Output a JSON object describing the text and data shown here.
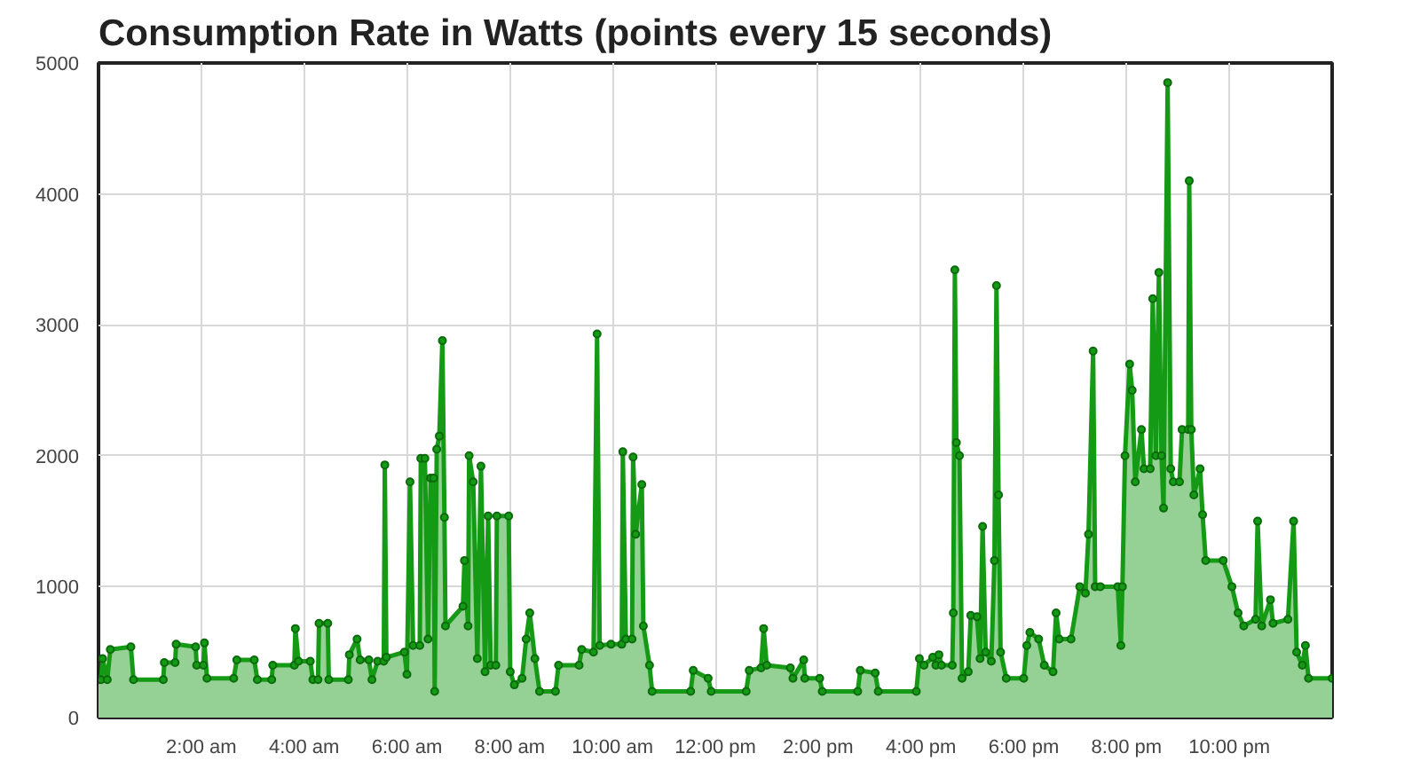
{
  "chart_data": {
    "type": "area",
    "title": "Consumption Rate in Watts (points every 15 seconds)",
    "xlim": [
      0,
      24
    ],
    "ylim": [
      0,
      5000
    ],
    "xticks": [
      {
        "value": 2,
        "label": "2:00 am"
      },
      {
        "value": 4,
        "label": "4:00 am"
      },
      {
        "value": 6,
        "label": "6:00 am"
      },
      {
        "value": 8,
        "label": "8:00 am"
      },
      {
        "value": 10,
        "label": "10:00 am"
      },
      {
        "value": 12,
        "label": "12:00 pm"
      },
      {
        "value": 14,
        "label": "2:00 pm"
      },
      {
        "value": 16,
        "label": "4:00 pm"
      },
      {
        "value": 18,
        "label": "6:00 pm"
      },
      {
        "value": 20,
        "label": "8:00 pm"
      },
      {
        "value": 22,
        "label": "10:00 pm"
      }
    ],
    "yticks": [
      0,
      1000,
      2000,
      3000,
      4000,
      5000
    ],
    "grid": true,
    "marker": "circle",
    "line_style": "solid",
    "series": [
      {
        "color": "#159a15",
        "x": [
          0,
          0.05,
          0.08,
          0.17,
          0.23,
          0.63,
          0.68,
          1.26,
          1.28,
          1.49,
          1.51,
          1.89,
          1.91,
          2.04,
          2.06,
          2.11,
          2.63,
          2.69,
          3.03,
          3.09,
          3.37,
          3.39,
          3.81,
          3.83,
          3.89,
          4.12,
          4.17,
          4.27,
          4.29,
          4.46,
          4.48,
          4.86,
          4.88,
          5.03,
          5.09,
          5.26,
          5.32,
          5.43,
          5.55,
          5.57,
          5.6,
          5.95,
          6.0,
          6.06,
          6.12,
          6.25,
          6.27,
          6.35,
          6.41,
          6.46,
          6.52,
          6.54,
          6.58,
          6.63,
          6.69,
          6.73,
          6.75,
          7.09,
          7.12,
          7.19,
          7.21,
          7.29,
          7.37,
          7.44,
          7.52,
          7.58,
          7.63,
          7.73,
          7.75,
          7.98,
          8.01,
          8.09,
          8.24,
          8.32,
          8.39,
          8.49,
          8.58,
          8.89,
          8.95,
          9.35,
          9.4,
          9.63,
          9.7,
          9.75,
          9.97,
          10.18,
          10.2,
          10.26,
          10.38,
          10.4,
          10.45,
          10.57,
          10.6,
          10.72,
          10.77,
          11.52,
          11.57,
          11.86,
          11.92,
          12.6,
          12.66,
          12.89,
          12.94,
          13.0,
          13.46,
          13.51,
          13.72,
          13.74,
          14.03,
          14.08,
          14.77,
          14.82,
          15.11,
          15.17,
          15.91,
          15.97,
          16.06,
          16.23,
          16.29,
          16.35,
          16.4,
          16.61,
          16.63,
          16.66,
          16.69,
          16.75,
          16.8,
          16.92,
          16.97,
          17.09,
          17.15,
          17.2,
          17.26,
          17.37,
          17.43,
          17.47,
          17.51,
          17.55,
          17.66,
          18.0,
          18.06,
          18.12,
          18.29,
          18.4,
          18.57,
          18.63,
          18.69,
          18.92,
          19.09,
          19.2,
          19.26,
          19.35,
          19.39,
          19.49,
          19.83,
          19.89,
          19.92,
          19.97,
          20.06,
          20.11,
          20.17,
          20.29,
          20.34,
          20.46,
          20.51,
          20.57,
          20.63,
          20.68,
          20.72,
          20.8,
          20.86,
          20.91,
          21.03,
          21.08,
          21.2,
          21.22,
          21.26,
          21.31,
          21.43,
          21.48,
          21.54,
          21.88,
          22.05,
          22.17,
          22.28,
          22.51,
          22.55,
          22.63,
          22.8,
          22.85,
          23.14,
          23.25,
          23.31,
          23.42,
          23.48,
          23.54,
          24.0
        ],
        "values": [
          290,
          290,
          450,
          290,
          520,
          540,
          290,
          290,
          420,
          420,
          560,
          540,
          400,
          400,
          570,
          300,
          300,
          440,
          440,
          290,
          290,
          400,
          400,
          680,
          430,
          430,
          290,
          290,
          720,
          720,
          290,
          290,
          480,
          600,
          440,
          440,
          290,
          430,
          430,
          1930,
          460,
          500,
          330,
          1800,
          550,
          550,
          1980,
          1980,
          600,
          1830,
          1830,
          200,
          2050,
          2150,
          2880,
          1530,
          700,
          850,
          1200,
          700,
          2000,
          1800,
          450,
          1920,
          350,
          1540,
          400,
          400,
          1540,
          1540,
          350,
          250,
          300,
          600,
          800,
          450,
          200,
          200,
          400,
          400,
          520,
          500,
          2930,
          550,
          560,
          560,
          2030,
          600,
          600,
          1990,
          1400,
          1780,
          700,
          400,
          200,
          200,
          360,
          300,
          200,
          200,
          360,
          380,
          680,
          400,
          380,
          300,
          440,
          300,
          300,
          200,
          200,
          360,
          340,
          200,
          200,
          450,
          400,
          460,
          400,
          480,
          400,
          400,
          800,
          3420,
          2100,
          2000,
          300,
          350,
          780,
          770,
          450,
          1460,
          500,
          430,
          1200,
          3300,
          1700,
          500,
          300,
          300,
          550,
          650,
          600,
          400,
          350,
          800,
          600,
          600,
          1000,
          950,
          1400,
          2800,
          1000,
          1000,
          1000,
          550,
          1000,
          2000,
          2700,
          2500,
          1800,
          2200,
          1900,
          1900,
          3200,
          2000,
          3400,
          2000,
          1600,
          4850,
          1900,
          1800,
          1800,
          2200,
          2200,
          4100,
          2200,
          1700,
          1900,
          1550,
          1200,
          1200,
          1000,
          800,
          700,
          750,
          1500,
          700,
          900,
          720,
          750,
          1500,
          500,
          400,
          550,
          300,
          300
        ]
      }
    ]
  }
}
